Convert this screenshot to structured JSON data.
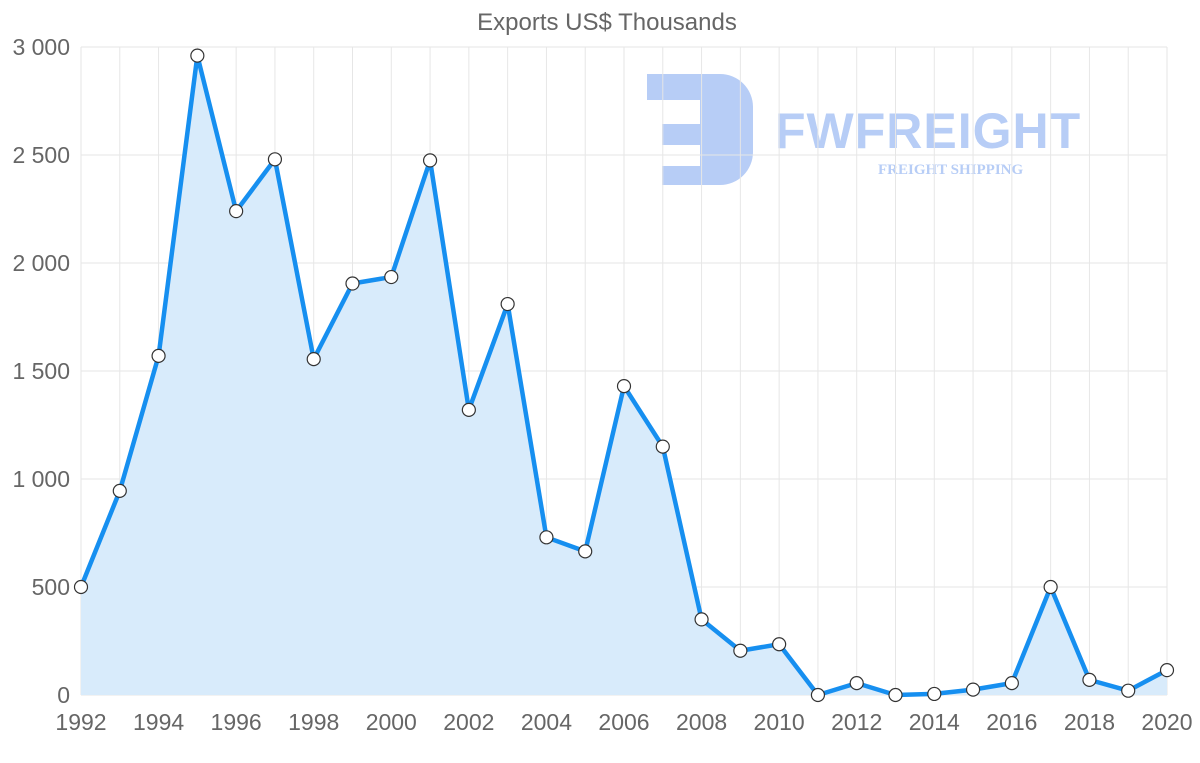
{
  "chart_data": {
    "type": "area",
    "title": "Exports US$ Thousands",
    "xlabel": "",
    "ylabel": "",
    "x": [
      1992,
      1993,
      1994,
      1995,
      1996,
      1997,
      1998,
      1999,
      2000,
      2001,
      2002,
      2003,
      2004,
      2005,
      2006,
      2007,
      2008,
      2009,
      2010,
      2011,
      2012,
      2013,
      2014,
      2015,
      2016,
      2017,
      2018,
      2019,
      2020
    ],
    "series": [
      {
        "name": "Exports US$ Thousands",
        "values": [
          500,
          945,
          1570,
          2960,
          2240,
          2480,
          1555,
          1905,
          1935,
          2475,
          1320,
          1810,
          730,
          665,
          1430,
          1150,
          350,
          205,
          235,
          0,
          55,
          0,
          5,
          25,
          55,
          500,
          70,
          20,
          115
        ]
      }
    ],
    "xlim": [
      1992,
      2020
    ],
    "ylim": [
      0,
      3000
    ],
    "x_ticks": [
      "1992",
      "1994",
      "1996",
      "1998",
      "2000",
      "2002",
      "2004",
      "2006",
      "2008",
      "2010",
      "2012",
      "2014",
      "2016",
      "2018",
      "2020"
    ],
    "y_ticks": [
      "0",
      "500",
      "1 000",
      "1 500",
      "2 000",
      "2 500",
      "3 000"
    ],
    "grid": true,
    "legend": "none",
    "line_color": "#168ff0",
    "fill_color": "#d8ebfb",
    "marker_fill": "#ffffff"
  },
  "watermark": {
    "brand": "FWFREIGHT",
    "tagline": "FREIGHT SHIPPING",
    "color": "#b7cdf6"
  }
}
